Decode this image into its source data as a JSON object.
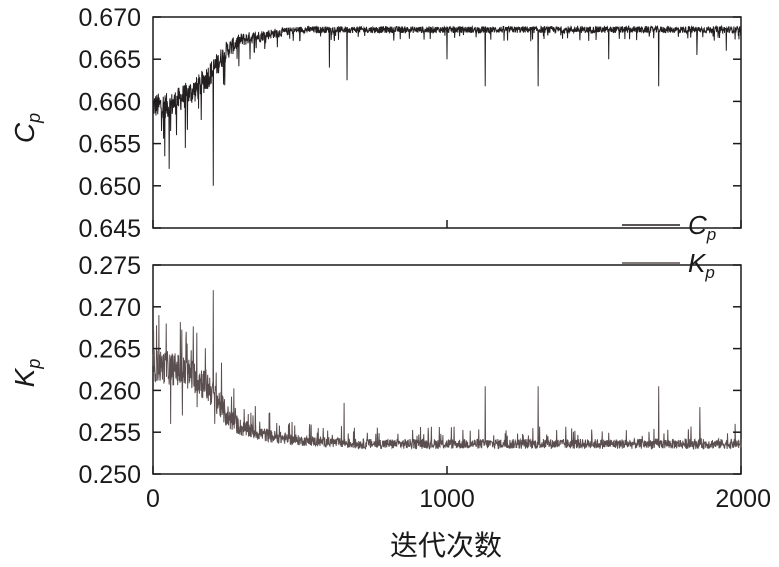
{
  "chart_data": {
    "type": "line",
    "xlabel": "迭代次数",
    "xlim": [
      0,
      2000
    ],
    "xticks": [
      "0",
      "1000",
      "2000"
    ],
    "legend": {
      "placement": "right-middle",
      "entries": [
        {
          "symbol": "C",
          "subscript": "p",
          "color": "#231f20"
        },
        {
          "symbol": "K",
          "subscript": "p",
          "color": "#5a4e4f"
        }
      ]
    },
    "panels": [
      {
        "ylabel": "C",
        "ylabel_sub": "p",
        "ylim": [
          0.645,
          0.67
        ],
        "yticks": [
          "0.645",
          "0.650",
          "0.655",
          "0.660",
          "0.665",
          "0.670"
        ],
        "series": {
          "color": "#231f20",
          "baseline": [
            [
              0,
              0.6595
            ],
            [
              60,
              0.6595
            ],
            [
              100,
              0.6605
            ],
            [
              150,
              0.6615
            ],
            [
              200,
              0.6635
            ],
            [
              250,
              0.666
            ],
            [
              300,
              0.6673
            ],
            [
              400,
              0.668
            ],
            [
              500,
              0.6685
            ],
            [
              2000,
              0.6685
            ]
          ],
          "noise_amp": [
            [
              0,
              0.0015
            ],
            [
              200,
              0.0015
            ],
            [
              300,
              0.0008
            ],
            [
              500,
              0.0004
            ],
            [
              2000,
              0.0004
            ]
          ],
          "spikes": [
            [
              40,
              0.6535
            ],
            [
              55,
              0.652
            ],
            [
              80,
              0.656
            ],
            [
              110,
              0.6545
            ],
            [
              205,
              0.65
            ],
            [
              240,
              0.662
            ],
            [
              330,
              0.665
            ],
            [
              600,
              0.664
            ],
            [
              660,
              0.6625
            ],
            [
              1000,
              0.665
            ],
            [
              1130,
              0.6618
            ],
            [
              1310,
              0.6618
            ],
            [
              1550,
              0.665
            ],
            [
              1720,
              0.6618
            ],
            [
              1850,
              0.6655
            ],
            [
              1950,
              0.666
            ]
          ]
        }
      },
      {
        "ylabel": "K",
        "ylabel_sub": "p",
        "ylim": [
          0.25,
          0.275
        ],
        "yticks": [
          "0.250",
          "0.255",
          "0.260",
          "0.265",
          "0.270",
          "0.275"
        ],
        "series": {
          "color": "#5a4e4f",
          "baseline": [
            [
              0,
              0.263
            ],
            [
              80,
              0.2625
            ],
            [
              150,
              0.2615
            ],
            [
              200,
              0.26
            ],
            [
              250,
              0.257
            ],
            [
              300,
              0.2555
            ],
            [
              400,
              0.2545
            ],
            [
              500,
              0.254
            ],
            [
              700,
              0.2536
            ],
            [
              2000,
              0.2536
            ]
          ],
          "noise_amp": [
            [
              0,
              0.002
            ],
            [
              200,
              0.002
            ],
            [
              300,
              0.001
            ],
            [
              500,
              0.0006
            ],
            [
              2000,
              0.0006
            ]
          ],
          "spikes": [
            [
              20,
              0.269
            ],
            [
              45,
              0.268
            ],
            [
              60,
              0.256
            ],
            [
              100,
              0.257
            ],
            [
              150,
              0.258
            ],
            [
              205,
              0.272
            ],
            [
              210,
              0.256
            ],
            [
              650,
              0.2585
            ],
            [
              1130,
              0.2605
            ],
            [
              1310,
              0.2605
            ],
            [
              1720,
              0.2605
            ],
            [
              1860,
              0.258
            ],
            [
              1980,
              0.256
            ]
          ]
        }
      }
    ]
  }
}
